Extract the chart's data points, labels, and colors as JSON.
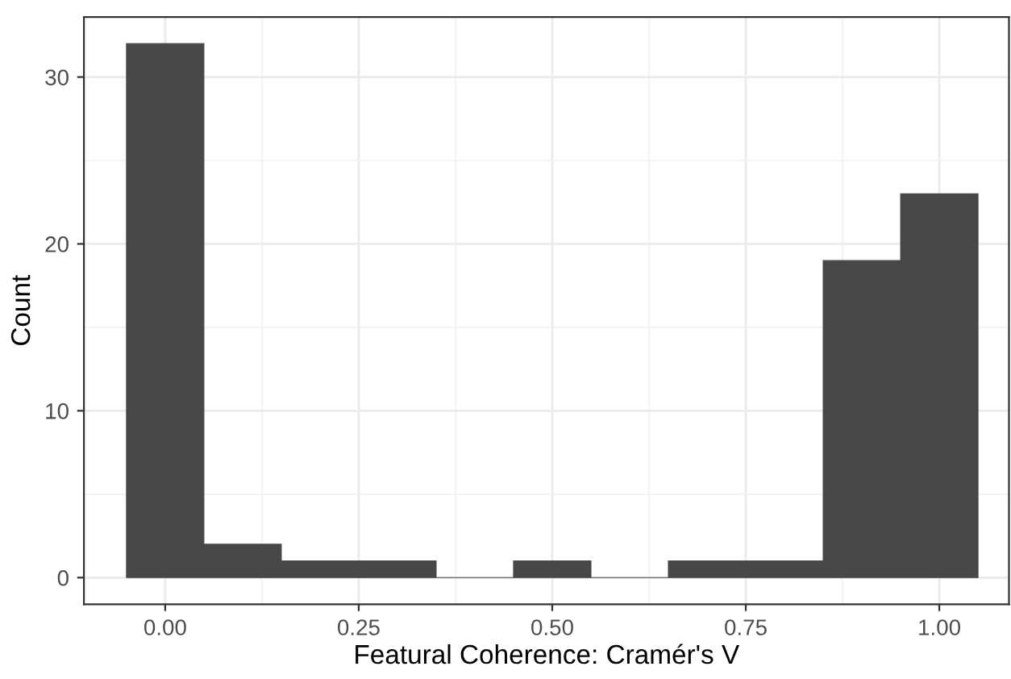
{
  "chart_data": {
    "type": "histogram",
    "xlabel": "Featural Coherence: Cramér's V",
    "ylabel": "Count",
    "bins": [
      -0.05,
      0.05,
      0.15,
      0.25,
      0.35,
      0.45,
      0.55,
      0.65,
      0.75,
      0.85,
      0.95,
      1.05
    ],
    "values": [
      32,
      2,
      1,
      1,
      0,
      1,
      0,
      1,
      1,
      19,
      23
    ],
    "color": "#474747",
    "xlim": [
      -0.105,
      1.09
    ],
    "ylim": [
      -1.6,
      33.6
    ],
    "xticks": [
      {
        "value": 0,
        "label": "0.00"
      },
      {
        "value": 0.25,
        "label": "0.25"
      },
      {
        "value": 0.5,
        "label": "0.50"
      },
      {
        "value": 0.75,
        "label": "0.75"
      },
      {
        "value": 1,
        "label": "1.00"
      }
    ],
    "yticks": [
      0,
      10,
      20,
      30
    ],
    "grid": true
  }
}
